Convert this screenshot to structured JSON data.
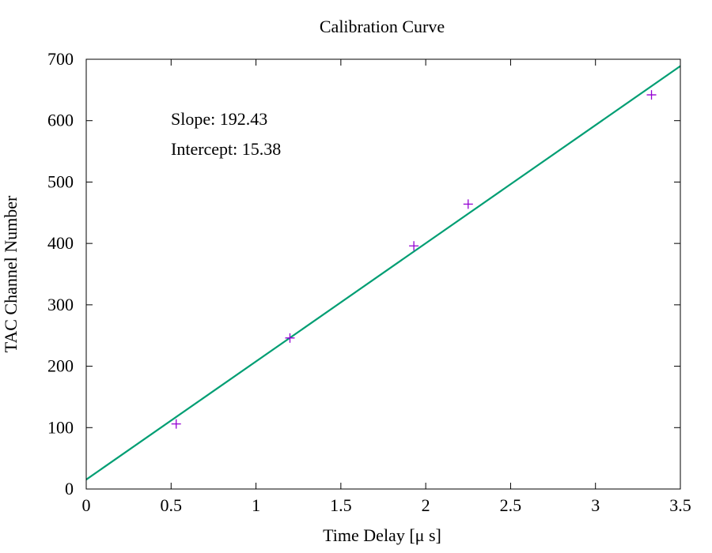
{
  "chart_data": {
    "type": "scatter",
    "title": "Calibration Curve",
    "xlabel": "Time Delay [μ s]",
    "ylabel": "TAC Channel Number",
    "xlim": [
      0,
      3.5
    ],
    "ylim": [
      0,
      700
    ],
    "xticks": [
      "0",
      "0.5",
      "1",
      "1.5",
      "2",
      "2.5",
      "3",
      "3.5"
    ],
    "yticks": [
      "0",
      "100",
      "200",
      "300",
      "400",
      "500",
      "600",
      "700"
    ],
    "grid": false,
    "points": [
      {
        "x": 0.53,
        "y": 106
      },
      {
        "x": 1.2,
        "y": 246
      },
      {
        "x": 1.93,
        "y": 396
      },
      {
        "x": 2.25,
        "y": 464
      },
      {
        "x": 3.33,
        "y": 642
      }
    ],
    "fit": {
      "slope": 192.43,
      "intercept": 15.38
    },
    "annotations": [
      "Slope: 192.43",
      "Intercept: 15.38"
    ],
    "colors": {
      "points": "#9400d3",
      "fit_line": "#009e73",
      "annotations": "#9400d3"
    }
  }
}
